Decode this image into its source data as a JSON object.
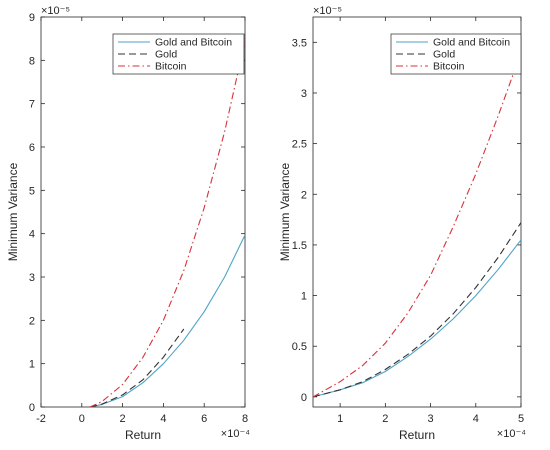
{
  "chart_data": [
    {
      "type": "line",
      "title": "",
      "xlabel": "Return",
      "ylabel": "Minimum Variance",
      "x_exponent": "×10⁻⁴",
      "y_exponent": "×10⁻⁵",
      "xlim": [
        -2,
        8
      ],
      "ylim": [
        0,
        9
      ],
      "xticks": [
        "-2",
        "0",
        "2",
        "4",
        "6",
        "8"
      ],
      "yticks": [
        "0",
        "1",
        "2",
        "3",
        "4",
        "5",
        "6",
        "7",
        "8",
        "9"
      ],
      "grid": false,
      "legend_position": "top-right",
      "series": [
        {
          "name": "Gold and Bitcoin",
          "color": "#4fa3c7",
          "style": "solid",
          "x": [
            0.4,
            1,
            2,
            3,
            4,
            5,
            6,
            7,
            8
          ],
          "y": [
            0.0,
            0.06,
            0.24,
            0.56,
            1.0,
            1.54,
            2.2,
            3.0,
            3.97
          ]
        },
        {
          "name": "Gold",
          "color": "#333333",
          "style": "dashed",
          "x": [
            0.4,
            1,
            2,
            3,
            4,
            5
          ],
          "y": [
            0.0,
            0.07,
            0.28,
            0.63,
            1.15,
            1.8
          ]
        },
        {
          "name": "Bitcoin",
          "color": "#d9323a",
          "style": "dashdot",
          "x": [
            0.4,
            1,
            2,
            3,
            4,
            5,
            6,
            7,
            8
          ],
          "y": [
            0.0,
            0.13,
            0.52,
            1.15,
            2.0,
            3.15,
            4.6,
            6.35,
            8.45
          ]
        }
      ]
    },
    {
      "type": "line",
      "title": "",
      "xlabel": "Return",
      "ylabel": "Minimum Variance",
      "x_exponent": "×10⁻⁴",
      "y_exponent": "×10⁻⁵",
      "xlim": [
        0.4,
        5
      ],
      "ylim": [
        -0.1,
        3.75
      ],
      "xticks": [
        "1",
        "2",
        "3",
        "4",
        "5"
      ],
      "yticks": [
        "0",
        "0.5",
        "1",
        "1.5",
        "2",
        "2.5",
        "3",
        "3.5"
      ],
      "grid": false,
      "legend_position": "top-right",
      "series": [
        {
          "name": "Gold and Bitcoin",
          "color": "#4fa3c7",
          "style": "solid",
          "x": [
            0.4,
            1,
            1.5,
            2,
            2.5,
            3,
            3.5,
            4,
            4.5,
            5
          ],
          "y": [
            0.0,
            0.07,
            0.14,
            0.25,
            0.4,
            0.57,
            0.77,
            1.0,
            1.26,
            1.55
          ]
        },
        {
          "name": "Gold",
          "color": "#333333",
          "style": "dashed",
          "x": [
            0.4,
            1,
            1.5,
            2,
            2.5,
            3,
            3.5,
            4,
            4.5,
            5
          ],
          "y": [
            0.0,
            0.07,
            0.15,
            0.27,
            0.42,
            0.6,
            0.82,
            1.08,
            1.38,
            1.72
          ]
        },
        {
          "name": "Bitcoin",
          "color": "#d9323a",
          "style": "dashdot",
          "x": [
            0.4,
            1,
            1.5,
            2,
            2.5,
            3,
            3.5,
            4,
            4.5,
            5
          ],
          "y": [
            0.0,
            0.15,
            0.31,
            0.53,
            0.83,
            1.2,
            1.68,
            2.2,
            2.78,
            3.4
          ]
        }
      ]
    }
  ]
}
